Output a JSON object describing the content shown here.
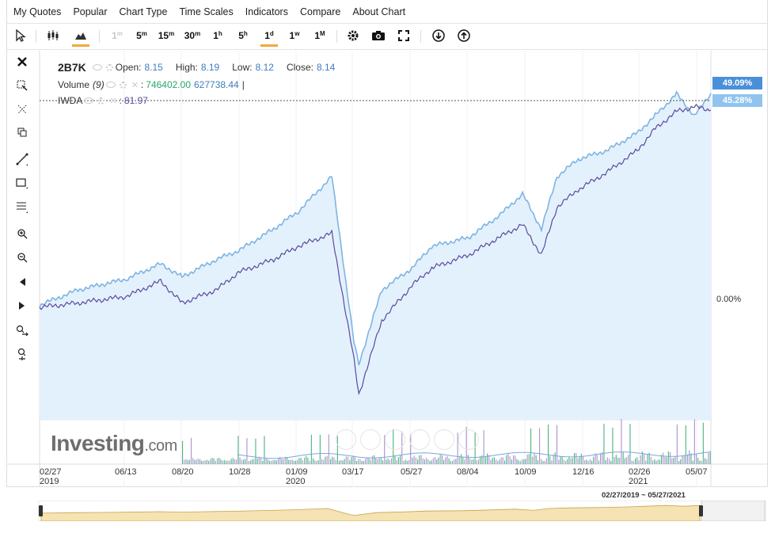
{
  "menu": [
    "My Quotes",
    "Popular",
    "Chart Type",
    "Time Scales",
    "Indicators",
    "Compare",
    "About Chart"
  ],
  "toolbar": {
    "timeframes": [
      {
        "base": "1",
        "sup": "m",
        "enabled": false
      },
      {
        "base": "5",
        "sup": "m",
        "enabled": true
      },
      {
        "base": "15",
        "sup": "m",
        "enabled": true
      },
      {
        "base": "30",
        "sup": "m",
        "enabled": true
      },
      {
        "base": "1",
        "sup": "h",
        "enabled": true
      },
      {
        "base": "5",
        "sup": "h",
        "enabled": true
      },
      {
        "base": "1",
        "sup": "d",
        "enabled": true,
        "active": true
      },
      {
        "base": "1",
        "sup": "w",
        "enabled": true
      },
      {
        "base": "1",
        "sup": "M",
        "enabled": true
      }
    ]
  },
  "legend": {
    "symbol": "2B7K",
    "open_label": "Open:",
    "open": "8.15",
    "high_label": "High:",
    "high": "8.19",
    "low_label": "Low:",
    "low": "8.12",
    "close_label": "Close:",
    "close": "8.14",
    "volume_label": "Volume",
    "volume_param": "(9)",
    "volume_values_sep": ":",
    "volume_value1": "746402.00",
    "volume_value2": "627738.44",
    "volume_cursor": "|",
    "compare_symbol": "IWDA",
    "compare_sep": ":",
    "compare_value": "81.97"
  },
  "price_axis": {
    "badge_top": "49.09%",
    "badge_second": "45.28%",
    "zero_label": "0.00%"
  },
  "colors": {
    "main_line": "#7eb4e3",
    "main_fill": "#e3f1fc",
    "compare_line": "#5a4aa0",
    "badge_top": "#4a90d9",
    "badge_second": "#90c4ef",
    "volume_bar": "#2aa56c",
    "navigator_fill": "#f5e3b3",
    "navigator_line": "#c8a44a"
  },
  "watermark": {
    "brand": "Investing",
    "suffix": ".com"
  },
  "xaxis": [
    {
      "line1": "02/27",
      "line2": "2019"
    },
    {
      "line1": "06/13",
      "line2": ""
    },
    {
      "line1": "08/20",
      "line2": ""
    },
    {
      "line1": "10/28",
      "line2": ""
    },
    {
      "line1": "01/09",
      "line2": "2020"
    },
    {
      "line1": "03/17",
      "line2": ""
    },
    {
      "line1": "05/27",
      "line2": ""
    },
    {
      "line1": "08/04",
      "line2": ""
    },
    {
      "line1": "10/09",
      "line2": ""
    },
    {
      "line1": "12/16",
      "line2": ""
    },
    {
      "line1": "02/26",
      "line2": "2021"
    },
    {
      "line1": "05/07",
      "line2": ""
    }
  ],
  "navigator": {
    "range_label": "02/27/2019 ~ 05/27/2021"
  },
  "chart_data": {
    "type": "area",
    "x_range": [
      "2019-02-27",
      "2021-05-27"
    ],
    "y_unit": "% change",
    "series": [
      {
        "name": "2B7K",
        "dates": [
          "2019-02-27",
          "2019-04-15",
          "2019-06-13",
          "2019-07-25",
          "2019-08-20",
          "2019-10-01",
          "2019-10-28",
          "2019-12-10",
          "2020-01-09",
          "2020-02-19",
          "2020-03-17",
          "2020-03-23",
          "2020-04-20",
          "2020-05-27",
          "2020-06-20",
          "2020-08-04",
          "2020-09-10",
          "2020-10-09",
          "2020-11-01",
          "2020-11-20",
          "2020-12-16",
          "2021-01-20",
          "2021-02-26",
          "2021-03-20",
          "2021-04-15",
          "2021-05-07",
          "2021-05-27"
        ],
        "values": [
          0.5,
          4,
          6.5,
          10,
          7,
          11,
          13,
          18,
          22,
          30,
          -8,
          -13,
          4,
          9,
          14,
          16,
          21,
          26,
          18,
          30,
          34,
          36,
          40,
          44,
          49,
          44,
          49.09
        ]
      },
      {
        "name": "IWDA",
        "dates": [
          "2019-02-27",
          "2019-04-15",
          "2019-06-13",
          "2019-07-25",
          "2019-08-20",
          "2019-10-01",
          "2019-10-28",
          "2019-12-10",
          "2020-01-09",
          "2020-02-19",
          "2020-03-17",
          "2020-03-23",
          "2020-04-20",
          "2020-05-27",
          "2020-06-20",
          "2020-08-04",
          "2020-09-10",
          "2020-10-09",
          "2020-11-01",
          "2020-11-20",
          "2020-12-16",
          "2021-01-20",
          "2021-02-26",
          "2021-03-20",
          "2021-04-15",
          "2021-05-07",
          "2021-05-27"
        ],
        "values": [
          0,
          1,
          2.5,
          6,
          1,
          4,
          8,
          11,
          14,
          17,
          -12,
          -20,
          -3,
          5,
          9,
          12,
          16,
          19,
          12,
          23,
          27,
          31,
          36,
          41,
          45,
          46,
          45.28
        ]
      }
    ],
    "ylim": [
      -20,
      50
    ]
  }
}
